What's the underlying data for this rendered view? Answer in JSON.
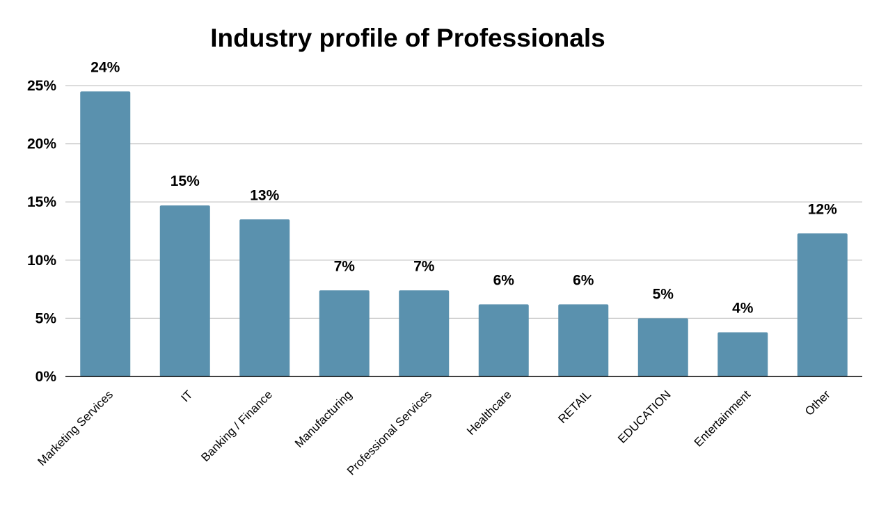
{
  "chart_data": {
    "type": "bar",
    "title": "Industry profile of Professionals",
    "categories": [
      "Marketing Services",
      "IT",
      "Banking / Finance",
      "Manufacturing",
      "Professional Services",
      "Healthcare",
      "RETAIL",
      "EDUCATION",
      "Entertainment",
      "Other"
    ],
    "values": [
      24.5,
      14.7,
      13.5,
      7.4,
      7.4,
      6.2,
      6.2,
      5.0,
      3.8,
      12.3
    ],
    "data_labels": [
      "24%",
      "15%",
      "13%",
      "7%",
      "7%",
      "6%",
      "6%",
      "5%",
      "4%",
      "12%"
    ],
    "ylim": [
      0,
      25
    ],
    "yticks": [
      0,
      5,
      10,
      15,
      20,
      25
    ],
    "ytick_labels": [
      "0%",
      "5%",
      "10%",
      "15%",
      "20%",
      "25%"
    ],
    "xlabel": "",
    "ylabel": "",
    "grid": true,
    "legend": "none",
    "bar_color": "#5a91ae",
    "grid_color": "#c8c8c8",
    "axis_color": "#000000"
  }
}
